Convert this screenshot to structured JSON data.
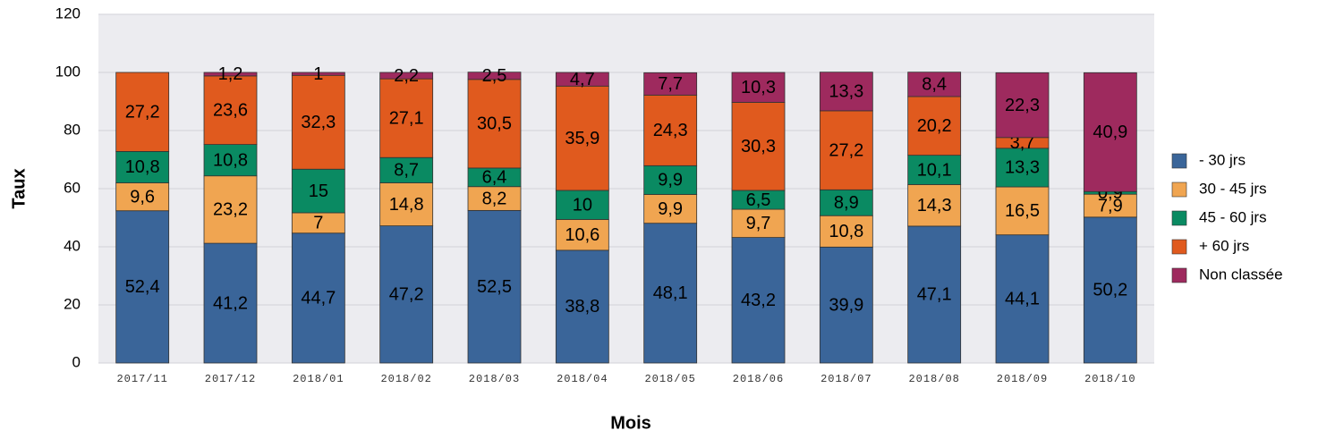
{
  "chart_data": {
    "type": "stacked_bar",
    "xlabel": "Mois",
    "ylabel": "Taux",
    "categories": [
      "2017/11",
      "2017/12",
      "2018/01",
      "2018/02",
      "2018/03",
      "2018/04",
      "2018/05",
      "2018/06",
      "2018/07",
      "2018/08",
      "2018/09",
      "2018/10"
    ],
    "ylim": [
      0,
      120
    ],
    "yticks": [
      0,
      20,
      40,
      60,
      80,
      100,
      120
    ],
    "grid": true,
    "legend": "right",
    "series": [
      {
        "name": "- 30 jrs",
        "color": "#3a6599",
        "values": [
          52.4,
          41.2,
          44.7,
          47.2,
          52.5,
          38.8,
          48.1,
          43.2,
          39.9,
          47.1,
          44.1,
          50.2
        ],
        "value_labels": [
          "52,4",
          "41,2",
          "44,7",
          "47,2",
          "52,5",
          "38,8",
          "48,1",
          "43,2",
          "39,9",
          "47,1",
          "44,1",
          "50,2"
        ]
      },
      {
        "name": "30 - 45 jrs",
        "color": "#f0a551",
        "values": [
          9.6,
          23.2,
          7,
          14.8,
          8.2,
          10.6,
          9.9,
          9.7,
          10.8,
          14.3,
          16.5,
          7.9
        ],
        "value_labels": [
          "9,6",
          "23,2",
          "7",
          "14,8",
          "8,2",
          "10,6",
          "9,9",
          "9,7",
          "10,8",
          "14,3",
          "16,5",
          "7,9"
        ]
      },
      {
        "name": "45 - 60 jrs",
        "color": "#0a8a62",
        "values": [
          10.8,
          10.8,
          15,
          8.7,
          6.4,
          10,
          9.9,
          6.5,
          8.9,
          10.1,
          13.3,
          0.9
        ],
        "value_labels": [
          "10,8",
          "10,8",
          "15",
          "8,7",
          "6,4",
          "10",
          "9,9",
          "6,5",
          "8,9",
          "10,1",
          "13,3",
          "0,9"
        ]
      },
      {
        "name": "+ 60 jrs",
        "color": "#e05a1e",
        "values": [
          27.2,
          23.6,
          32.3,
          27.1,
          30.5,
          35.9,
          24.3,
          30.3,
          27.2,
          20.2,
          3.7,
          null
        ],
        "value_labels": [
          "27,2",
          "23,6",
          "32,3",
          "27,1",
          "30,5",
          "35,9",
          "24,3",
          "30,3",
          "27,2",
          "20,2",
          "3,7",
          null
        ]
      },
      {
        "name": "Non classée",
        "color": "#9e2a5e",
        "values": [
          null,
          1.2,
          1,
          2.2,
          2.5,
          4.7,
          7.7,
          10.3,
          13.3,
          8.4,
          22.3,
          40.9
        ],
        "value_labels": [
          null,
          "1,2",
          "1",
          "2,2",
          "2,5",
          "4,7",
          "7,7",
          "10,3",
          "13,3",
          "8,4",
          "22,3",
          "40,9"
        ]
      }
    ]
  }
}
